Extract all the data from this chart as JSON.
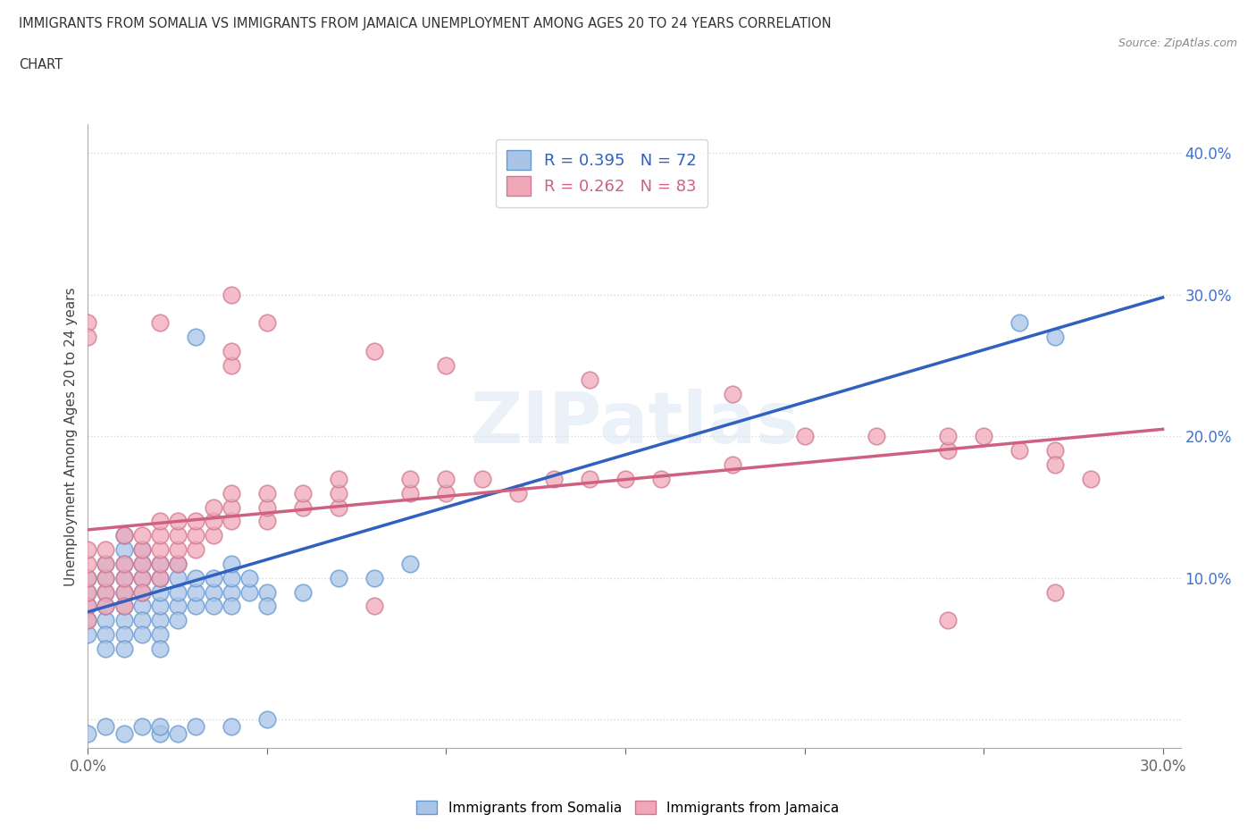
{
  "title_line1": "IMMIGRANTS FROM SOMALIA VS IMMIGRANTS FROM JAMAICA UNEMPLOYMENT AMONG AGES 20 TO 24 YEARS CORRELATION",
  "title_line2": "CHART",
  "source": "Source: ZipAtlas.com",
  "ylabel": "Unemployment Among Ages 20 to 24 years",
  "xlim": [
    0.0,
    0.305
  ],
  "ylim": [
    -0.02,
    0.42
  ],
  "xticks": [
    0.0,
    0.05,
    0.1,
    0.15,
    0.2,
    0.25,
    0.3
  ],
  "yticks": [
    0.0,
    0.1,
    0.2,
    0.3,
    0.4
  ],
  "somalia_R": 0.395,
  "somalia_N": 72,
  "jamaica_R": 0.262,
  "jamaica_N": 83,
  "somalia_color": "#aac4e8",
  "somalia_edge_color": "#6699cc",
  "jamaica_color": "#f0a8b8",
  "jamaica_edge_color": "#d07890",
  "somalia_line_color": "#3060c0",
  "jamaica_line_color": "#d06080",
  "watermark": "ZIPatlas",
  "legend_somalia_label": "Immigrants from Somalia",
  "legend_jamaica_label": "Immigrants from Jamaica",
  "somalia_scatter": [
    [
      0.0,
      0.07
    ],
    [
      0.0,
      0.08
    ],
    [
      0.0,
      0.09
    ],
    [
      0.0,
      0.1
    ],
    [
      0.0,
      0.06
    ],
    [
      0.005,
      0.07
    ],
    [
      0.005,
      0.08
    ],
    [
      0.005,
      0.06
    ],
    [
      0.005,
      0.09
    ],
    [
      0.005,
      0.1
    ],
    [
      0.005,
      0.05
    ],
    [
      0.005,
      0.11
    ],
    [
      0.01,
      0.07
    ],
    [
      0.01,
      0.08
    ],
    [
      0.01,
      0.09
    ],
    [
      0.01,
      0.1
    ],
    [
      0.01,
      0.06
    ],
    [
      0.01,
      0.11
    ],
    [
      0.01,
      0.05
    ],
    [
      0.01,
      0.12
    ],
    [
      0.01,
      0.13
    ],
    [
      0.015,
      0.08
    ],
    [
      0.015,
      0.09
    ],
    [
      0.015,
      0.1
    ],
    [
      0.015,
      0.11
    ],
    [
      0.015,
      0.07
    ],
    [
      0.015,
      0.06
    ],
    [
      0.015,
      0.12
    ],
    [
      0.02,
      0.07
    ],
    [
      0.02,
      0.08
    ],
    [
      0.02,
      0.09
    ],
    [
      0.02,
      0.1
    ],
    [
      0.02,
      0.11
    ],
    [
      0.02,
      0.06
    ],
    [
      0.02,
      0.05
    ],
    [
      0.025,
      0.08
    ],
    [
      0.025,
      0.09
    ],
    [
      0.025,
      0.1
    ],
    [
      0.025,
      0.11
    ],
    [
      0.025,
      0.07
    ],
    [
      0.03,
      0.08
    ],
    [
      0.03,
      0.09
    ],
    [
      0.03,
      0.1
    ],
    [
      0.035,
      0.09
    ],
    [
      0.035,
      0.1
    ],
    [
      0.035,
      0.08
    ],
    [
      0.04,
      0.09
    ],
    [
      0.04,
      0.1
    ],
    [
      0.04,
      0.11
    ],
    [
      0.04,
      0.08
    ],
    [
      0.045,
      0.09
    ],
    [
      0.045,
      0.1
    ],
    [
      0.05,
      0.09
    ],
    [
      0.05,
      0.08
    ],
    [
      0.06,
      0.09
    ],
    [
      0.07,
      0.1
    ],
    [
      0.08,
      0.1
    ],
    [
      0.09,
      0.11
    ],
    [
      0.0,
      -0.01
    ],
    [
      0.005,
      -0.005
    ],
    [
      0.01,
      -0.01
    ],
    [
      0.015,
      -0.005
    ],
    [
      0.02,
      -0.01
    ],
    [
      0.02,
      -0.005
    ],
    [
      0.025,
      -0.01
    ],
    [
      0.03,
      -0.005
    ],
    [
      0.04,
      -0.005
    ],
    [
      0.05,
      0.0
    ],
    [
      0.03,
      0.27
    ],
    [
      0.27,
      0.27
    ],
    [
      0.26,
      0.28
    ]
  ],
  "jamaica_scatter": [
    [
      0.0,
      0.08
    ],
    [
      0.0,
      0.09
    ],
    [
      0.0,
      0.1
    ],
    [
      0.0,
      0.11
    ],
    [
      0.0,
      0.12
    ],
    [
      0.0,
      0.07
    ],
    [
      0.005,
      0.09
    ],
    [
      0.005,
      0.1
    ],
    [
      0.005,
      0.11
    ],
    [
      0.005,
      0.08
    ],
    [
      0.005,
      0.12
    ],
    [
      0.01,
      0.09
    ],
    [
      0.01,
      0.1
    ],
    [
      0.01,
      0.11
    ],
    [
      0.01,
      0.08
    ],
    [
      0.01,
      0.13
    ],
    [
      0.015,
      0.1
    ],
    [
      0.015,
      0.11
    ],
    [
      0.015,
      0.12
    ],
    [
      0.015,
      0.09
    ],
    [
      0.015,
      0.13
    ],
    [
      0.02,
      0.1
    ],
    [
      0.02,
      0.11
    ],
    [
      0.02,
      0.12
    ],
    [
      0.02,
      0.13
    ],
    [
      0.02,
      0.14
    ],
    [
      0.025,
      0.11
    ],
    [
      0.025,
      0.12
    ],
    [
      0.025,
      0.13
    ],
    [
      0.025,
      0.14
    ],
    [
      0.03,
      0.12
    ],
    [
      0.03,
      0.13
    ],
    [
      0.03,
      0.14
    ],
    [
      0.035,
      0.13
    ],
    [
      0.035,
      0.14
    ],
    [
      0.035,
      0.15
    ],
    [
      0.04,
      0.14
    ],
    [
      0.04,
      0.15
    ],
    [
      0.04,
      0.16
    ],
    [
      0.04,
      0.25
    ],
    [
      0.04,
      0.26
    ],
    [
      0.05,
      0.14
    ],
    [
      0.05,
      0.15
    ],
    [
      0.05,
      0.16
    ],
    [
      0.06,
      0.15
    ],
    [
      0.06,
      0.16
    ],
    [
      0.07,
      0.15
    ],
    [
      0.07,
      0.16
    ],
    [
      0.07,
      0.17
    ],
    [
      0.08,
      0.08
    ],
    [
      0.09,
      0.16
    ],
    [
      0.09,
      0.17
    ],
    [
      0.1,
      0.16
    ],
    [
      0.1,
      0.17
    ],
    [
      0.11,
      0.17
    ],
    [
      0.12,
      0.16
    ],
    [
      0.13,
      0.17
    ],
    [
      0.14,
      0.17
    ],
    [
      0.15,
      0.17
    ],
    [
      0.16,
      0.17
    ],
    [
      0.18,
      0.18
    ],
    [
      0.2,
      0.2
    ],
    [
      0.22,
      0.2
    ],
    [
      0.24,
      0.19
    ],
    [
      0.25,
      0.2
    ],
    [
      0.0,
      0.28
    ],
    [
      0.0,
      0.27
    ],
    [
      0.02,
      0.28
    ],
    [
      0.04,
      0.3
    ],
    [
      0.05,
      0.28
    ],
    [
      0.08,
      0.26
    ],
    [
      0.1,
      0.25
    ],
    [
      0.14,
      0.24
    ],
    [
      0.18,
      0.23
    ],
    [
      0.24,
      0.2
    ],
    [
      0.26,
      0.19
    ],
    [
      0.27,
      0.19
    ],
    [
      0.27,
      0.18
    ],
    [
      0.28,
      0.17
    ],
    [
      0.24,
      0.07
    ],
    [
      0.27,
      0.09
    ]
  ],
  "somalia_trend": {
    "x_start": 0.0,
    "y_start": 0.076,
    "x_end": 0.3,
    "y_end": 0.298
  },
  "jamaica_trend": {
    "x_start": 0.0,
    "y_start": 0.134,
    "x_end": 0.3,
    "y_end": 0.205
  }
}
